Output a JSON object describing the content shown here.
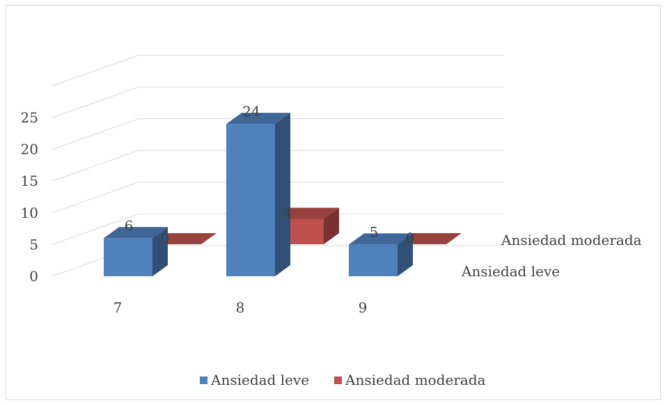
{
  "chart_data": {
    "type": "bar",
    "categories": [
      "7",
      "8",
      "9"
    ],
    "series": [
      {
        "name": "Ansiedad leve",
        "values": [
          6,
          24,
          5
        ],
        "color": "#4f81bd"
      },
      {
        "name": "Ansiedad moderada",
        "values": [
          0,
          4,
          0
        ],
        "color": "#c0504d"
      }
    ],
    "y_ticks": [
      "0",
      "5",
      "10",
      "15",
      "20",
      "25"
    ],
    "ylim": [
      0,
      25
    ],
    "grid": true,
    "legend": "bottom",
    "depth_axis_labels": [
      "Ansiedad leve",
      "Ansiedad moderada"
    ],
    "data_labels": true,
    "title": "",
    "xlabel": "",
    "ylabel": ""
  }
}
